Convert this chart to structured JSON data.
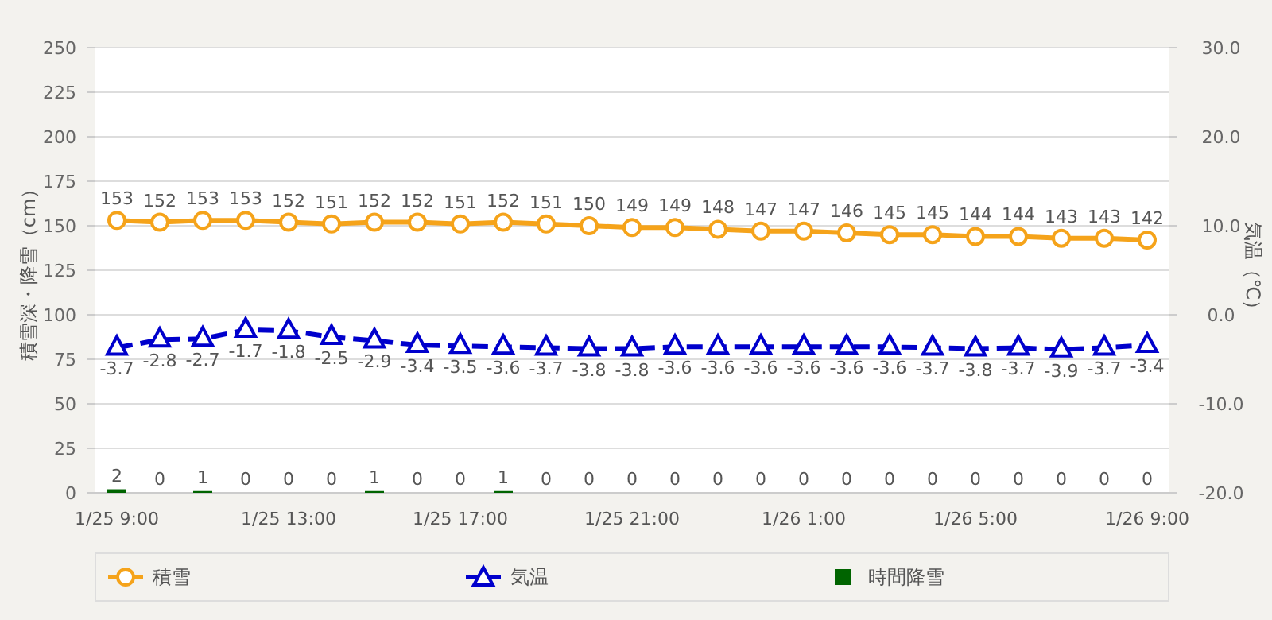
{
  "chart_data": {
    "type": "line",
    "ylabel": "積雪深・降雪（cm）",
    "y2label": "気温（℃）",
    "categories": [
      "1/25 9:00",
      null,
      null,
      null,
      "1/25 13:00",
      null,
      null,
      null,
      "1/25 17:00",
      null,
      null,
      null,
      "1/25 21:00",
      null,
      null,
      null,
      "1/26 1:00",
      null,
      null,
      null,
      "1/26 5:00",
      null,
      null,
      null,
      "1/26 9:00"
    ],
    "ylim": [
      0,
      250
    ],
    "yticks": [
      0,
      25,
      50,
      75,
      100,
      125,
      150,
      175,
      200,
      225,
      250
    ],
    "y2lim": [
      -20,
      30
    ],
    "y2ticks": [
      {
        "value": -20,
        "label": "-20.0"
      },
      {
        "value": -10,
        "label": "-10.0"
      },
      {
        "value": 0,
        "label": "0.0"
      },
      {
        "value": 10,
        "label": "10.0"
      },
      {
        "value": 20,
        "label": "20.0"
      },
      {
        "value": 30,
        "label": "30.0"
      }
    ],
    "grid": "y",
    "legend": "bottom",
    "data_labels": true,
    "series": [
      {
        "name": "積雪",
        "color": "#f5a31a",
        "marker": "circle",
        "line_style": "solid",
        "values": [
          153,
          152,
          153,
          153,
          152,
          151,
          152,
          152,
          151,
          152,
          151,
          150,
          149,
          149,
          148,
          147,
          147,
          146,
          145,
          145,
          144,
          144,
          143,
          143,
          142
        ]
      },
      {
        "name": "気温",
        "axis": "y2",
        "color": "#0000cc",
        "marker": "triangle",
        "line_style": "dashed",
        "values": [
          -3.7,
          -2.8,
          -2.7,
          -1.7,
          -1.8,
          -2.5,
          -2.9,
          -3.4,
          -3.5,
          -3.6,
          -3.7,
          -3.8,
          -3.8,
          -3.6,
          -3.6,
          -3.6,
          -3.6,
          -3.6,
          -3.6,
          -3.7,
          -3.8,
          -3.7,
          -3.9,
          -3.7,
          -3.4
        ]
      },
      {
        "name": "時間降雪",
        "type": "bar",
        "color": "#006400",
        "values": [
          2,
          0,
          1,
          0,
          0,
          0,
          1,
          0,
          0,
          1,
          0,
          0,
          0,
          0,
          0,
          0,
          0,
          0,
          0,
          0,
          0,
          0,
          0,
          0,
          0
        ]
      }
    ]
  }
}
